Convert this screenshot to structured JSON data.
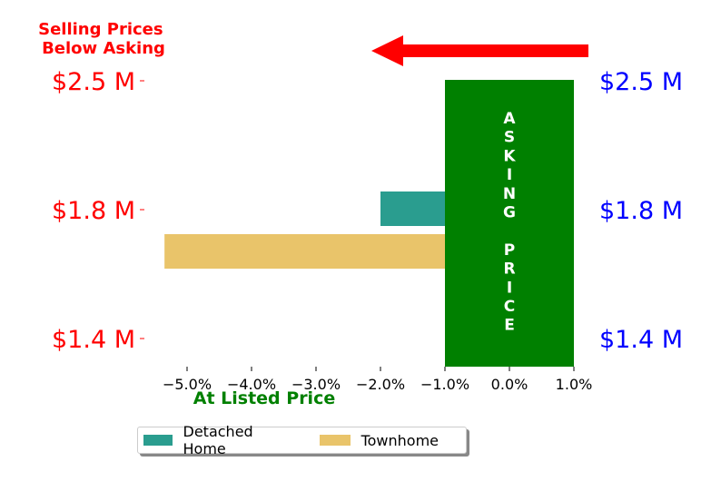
{
  "chart_data": {
    "type": "bar",
    "orientation": "horizontal",
    "headline": "Selling Prices\nBelow Asking",
    "xlabel": "At Listed Price",
    "xlim": [
      -5.5,
      1.2
    ],
    "x_ticks": [
      -5.0,
      -4.0,
      -3.0,
      -2.0,
      -1.0,
      0.0,
      1.0
    ],
    "x_tick_labels": [
      "−5.0%",
      "−4.0%",
      "−3.0%",
      "−2.0%",
      "−1.0%",
      "0.0%",
      "1.0%"
    ],
    "y_tick_labels_left": [
      "$2.5 M",
      "$1.8 M",
      "$1.4 M"
    ],
    "y_tick_labels_right": [
      "$2.5 M",
      "$1.8 M",
      "$1.4 M"
    ],
    "series": [
      {
        "name": "Detached Home",
        "color": "#2a9d8f",
        "start": -2.0,
        "end": -1.0
      },
      {
        "name": "Townhome",
        "color": "#e9c46a",
        "start": -5.35,
        "end": -1.0
      }
    ],
    "asking_price_band": {
      "x_start": -1.0,
      "x_end": 1.0,
      "label": "ASKING PRICE",
      "color": "#008000"
    },
    "arrow": {
      "color": "#ff0000",
      "direction": "left"
    },
    "colors": {
      "headline": "#ff0000",
      "left_ticks": "#ff0000",
      "right_ticks": "#0000ff",
      "xlabel": "#008000"
    },
    "legend": {
      "placement": "bottom-center",
      "entries": [
        "Detached Home",
        "Townhome"
      ]
    }
  }
}
